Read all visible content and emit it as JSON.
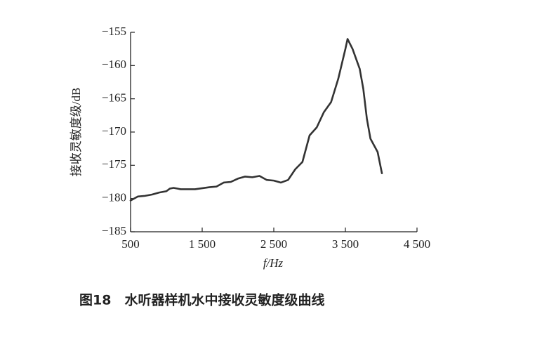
{
  "chart_data": {
    "type": "line",
    "x_label": "f/Hz",
    "y_label": "接收灵敏度级/dB",
    "caption": "图18　水听器样机水中接收灵敏度级曲线",
    "x": [
      500,
      600,
      700,
      800,
      900,
      1000,
      1050,
      1100,
      1200,
      1400,
      1600,
      1700,
      1800,
      1900,
      2000,
      2100,
      2200,
      2300,
      2400,
      2500,
      2600,
      2700,
      2800,
      2900,
      3000,
      3100,
      3200,
      3300,
      3400,
      3500,
      3530,
      3600,
      3700,
      3750,
      3800,
      3850,
      3950,
      4010
    ],
    "series": [
      {
        "color": "#333333",
        "values": [
          -180.3,
          -179.7,
          -179.6,
          -179.4,
          -179.1,
          -178.9,
          -178.5,
          -178.4,
          -178.6,
          -178.6,
          -178.3,
          -178.2,
          -177.6,
          -177.5,
          -177.0,
          -176.7,
          -176.8,
          -176.6,
          -177.2,
          -177.3,
          -177.6,
          -177.2,
          -175.6,
          -174.5,
          -170.5,
          -169.3,
          -167.0,
          -165.5,
          -162.0,
          -157.5,
          -156.0,
          -157.5,
          -160.5,
          -163.5,
          -168.0,
          -171.0,
          -173.0,
          -176.2
        ]
      }
    ],
    "xlim": [
      500,
      4500
    ],
    "xticks": [
      {
        "value": 500,
        "label": "500"
      },
      {
        "value": 1500,
        "label": "1 500"
      },
      {
        "value": 2500,
        "label": "2 500"
      },
      {
        "value": 3500,
        "label": "3 500"
      },
      {
        "value": 4500,
        "label": "4 500"
      }
    ],
    "ylim": [
      -185,
      -155
    ],
    "yticks": [
      {
        "value": -155,
        "label": "−155"
      },
      {
        "value": -160,
        "label": "−160"
      },
      {
        "value": -165,
        "label": "−165"
      },
      {
        "value": -170,
        "label": "−170"
      },
      {
        "value": -175,
        "label": "−175"
      },
      {
        "value": -180,
        "label": "−180"
      },
      {
        "value": -185,
        "label": "−185"
      }
    ],
    "grid": false
  }
}
